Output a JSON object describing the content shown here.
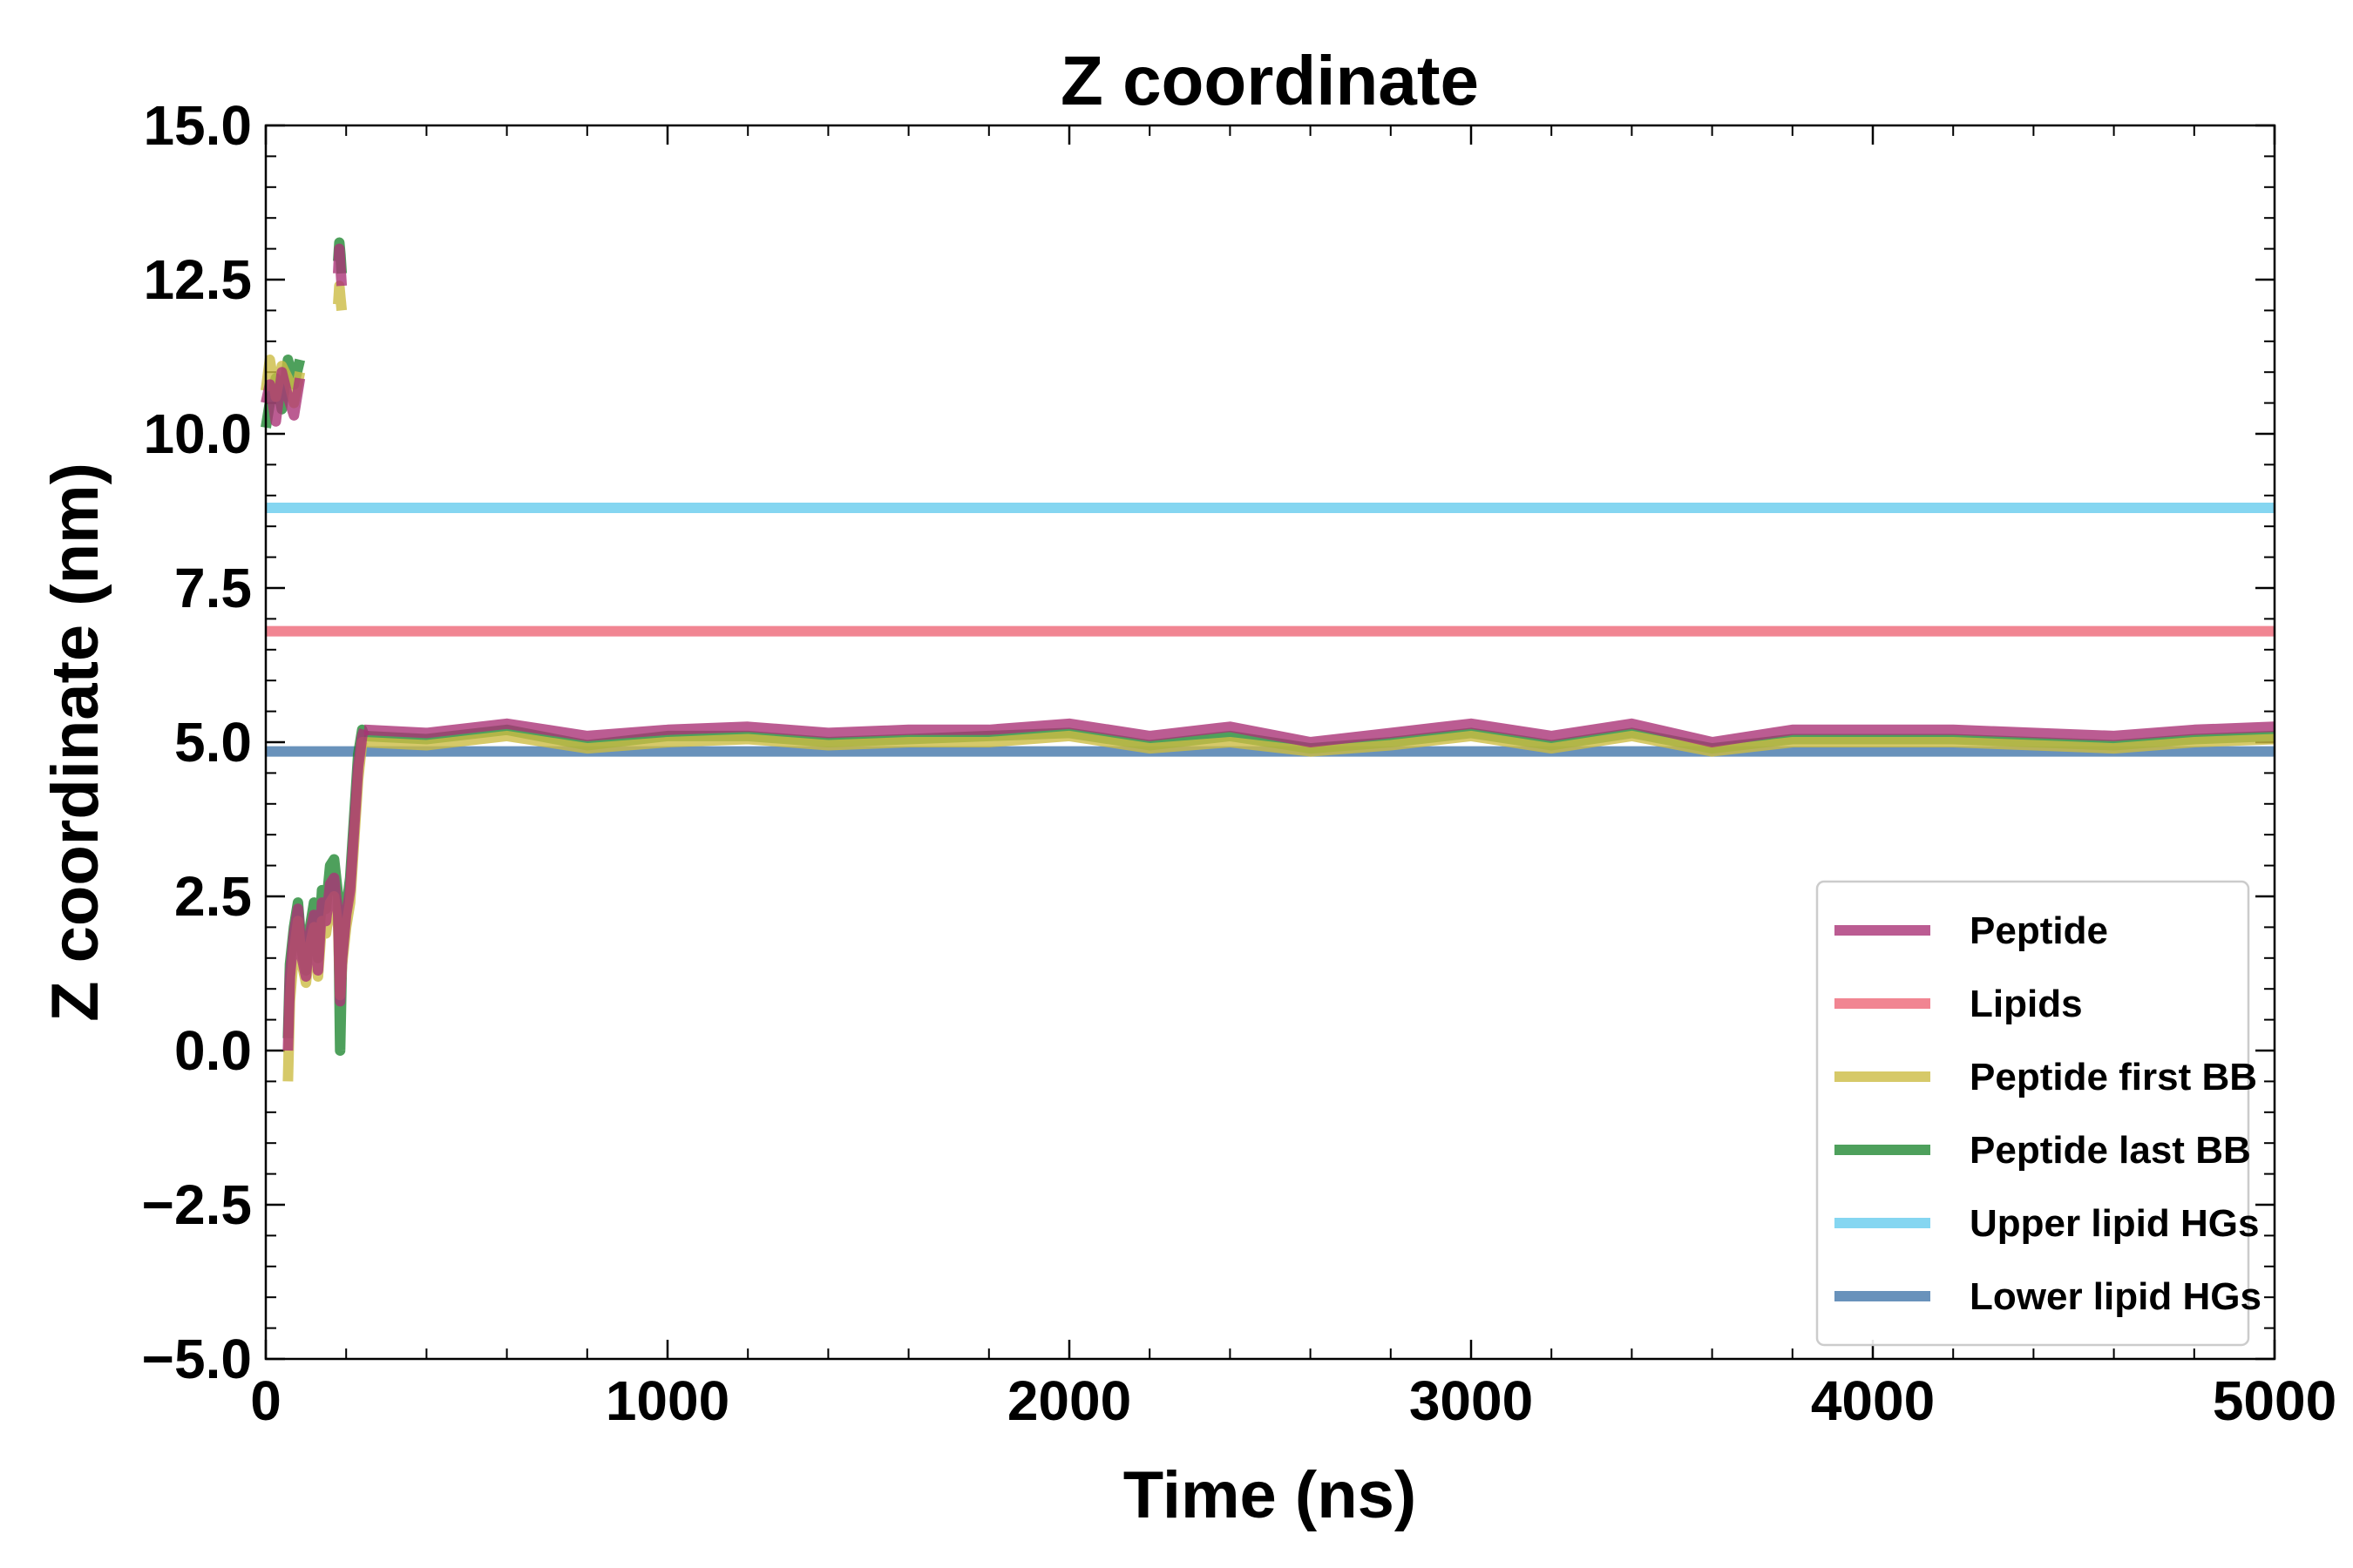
{
  "chart_data": {
    "type": "line",
    "title": "Z coordinate",
    "xlabel": "Time (ns)",
    "ylabel": "Z coordinate (nm)",
    "xlim": [
      0,
      5000
    ],
    "ylim": [
      -5.0,
      15.0
    ],
    "x_ticks": [
      0,
      1000,
      2000,
      3000,
      4000,
      5000
    ],
    "x_tick_labels": [
      "0",
      "1000",
      "2000",
      "3000",
      "4000",
      "5000"
    ],
    "y_ticks": [
      -5.0,
      -2.5,
      0.0,
      2.5,
      5.0,
      7.5,
      10.0,
      12.5,
      15.0
    ],
    "y_tick_labels": [
      "−5.0",
      "−2.5",
      "0.0",
      "2.5",
      "5.0",
      "7.5",
      "10.0",
      "12.5",
      "15.0"
    ],
    "grid": false,
    "legend_position": "lower-right",
    "series": [
      {
        "name": "Peptide",
        "color": "#aa3377",
        "segments": [
          {
            "x": [
              0,
              10,
              25,
              40,
              55,
              70,
              85
            ],
            "y": [
              10.5,
              10.8,
              10.2,
              11.0,
              10.6,
              10.3,
              10.9
            ]
          },
          {
            "x": [
              180,
              183,
              186,
              189
            ],
            "y": [
              12.6,
              13.0,
              12.7,
              12.4
            ]
          },
          {
            "x": [
              55,
              60,
              70,
              80,
              90,
              100,
              110,
              120,
              130,
              140,
              150,
              160,
              170,
              180,
              185,
              190,
              200,
              210,
              220,
              230,
              240,
              245
            ],
            "y": [
              0.0,
              1.2,
              1.9,
              2.3,
              1.5,
              1.2,
              1.9,
              2.2,
              1.3,
              2.4,
              2.1,
              2.7,
              2.8,
              2.2,
              0.8,
              1.5,
              2.2,
              2.6,
              3.6,
              4.6,
              5.1,
              5.2
            ]
          },
          {
            "x": [
              245,
              400,
              600,
              800,
              1000,
              1200,
              1400,
              1600,
              1800,
              2000,
              2200,
              2400,
              2600,
              2800,
              3000,
              3200,
              3400,
              3600,
              3800,
              4000,
              4200,
              4400,
              4600,
              4800,
              5000
            ],
            "y": [
              5.2,
              5.15,
              5.3,
              5.1,
              5.2,
              5.25,
              5.15,
              5.2,
              5.2,
              5.3,
              5.1,
              5.25,
              5.0,
              5.15,
              5.3,
              5.1,
              5.3,
              5.0,
              5.2,
              5.2,
              5.2,
              5.15,
              5.1,
              5.2,
              5.25
            ]
          }
        ]
      },
      {
        "name": "Lipids",
        "color": "#ee6677",
        "segments": [
          {
            "x": [
              0,
              500,
              1000,
              1500,
              2000,
              2500,
              3000,
              3500,
              4000,
              4500,
              5000
            ],
            "y": [
              6.8,
              6.8,
              6.8,
              6.8,
              6.8,
              6.8,
              6.8,
              6.8,
              6.8,
              6.8,
              6.8
            ]
          }
        ]
      },
      {
        "name": "Peptide first BB",
        "color": "#ccbb44",
        "segments": [
          {
            "x": [
              0,
              10,
              25,
              40,
              55,
              70,
              85
            ],
            "y": [
              10.7,
              11.2,
              10.6,
              11.1,
              10.9,
              10.5,
              11.0
            ]
          },
          {
            "x": [
              180,
              183,
              186,
              189
            ],
            "y": [
              12.1,
              12.4,
              12.2,
              12.0
            ]
          },
          {
            "x": [
              55,
              60,
              70,
              80,
              90,
              100,
              110,
              120,
              130,
              140,
              150,
              160,
              170,
              180,
              185,
              190,
              200,
              210,
              220,
              230,
              240,
              245
            ],
            "y": [
              -0.5,
              0.8,
              1.6,
              2.1,
              1.4,
              1.1,
              1.7,
              2.0,
              1.2,
              2.1,
              1.9,
              2.4,
              2.5,
              2.0,
              0.9,
              1.4,
              2.0,
              2.4,
              3.4,
              4.4,
              5.0,
              5.0
            ]
          },
          {
            "x": [
              245,
              400,
              600,
              800,
              1000,
              1200,
              1400,
              1600,
              1800,
              2000,
              2200,
              2400,
              2600,
              2800,
              3000,
              3200,
              3400,
              3600,
              3800,
              4000,
              4200,
              4400,
              4600,
              4800,
              5000
            ],
            "y": [
              5.0,
              4.95,
              5.1,
              4.9,
              5.0,
              5.05,
              4.95,
              5.0,
              5.0,
              5.1,
              4.9,
              5.0,
              4.85,
              4.95,
              5.1,
              4.9,
              5.1,
              4.85,
              5.0,
              5.0,
              5.0,
              4.95,
              4.9,
              5.0,
              5.05
            ]
          }
        ]
      },
      {
        "name": "Peptide last BB",
        "color": "#228833",
        "segments": [
          {
            "x": [
              0,
              10,
              25,
              40,
              55,
              70,
              85
            ],
            "y": [
              10.1,
              10.5,
              10.9,
              10.4,
              11.2,
              10.8,
              11.2
            ]
          },
          {
            "x": [
              180,
              183,
              186,
              189
            ],
            "y": [
              12.8,
              13.1,
              12.9,
              12.6
            ]
          },
          {
            "x": [
              55,
              60,
              70,
              80,
              90,
              100,
              110,
              120,
              130,
              140,
              150,
              160,
              170,
              180,
              185,
              190,
              200,
              210,
              220,
              230,
              240,
              245
            ],
            "y": [
              0.2,
              1.4,
              2.0,
              2.4,
              1.6,
              1.3,
              2.0,
              2.4,
              1.5,
              2.6,
              2.3,
              3.0,
              3.1,
              2.5,
              0.0,
              1.6,
              2.3,
              2.8,
              3.8,
              4.8,
              5.2,
              5.1
            ]
          },
          {
            "x": [
              245,
              400,
              600,
              800,
              1000,
              1200,
              1400,
              1600,
              1800,
              2000,
              2200,
              2400,
              2600,
              2800,
              3000,
              3200,
              3400,
              3600,
              3800,
              4000,
              4200,
              4400,
              4600,
              4800,
              5000
            ],
            "y": [
              5.1,
              5.05,
              5.2,
              4.95,
              5.1,
              5.1,
              5.0,
              5.05,
              5.1,
              5.15,
              4.95,
              5.1,
              4.9,
              5.0,
              5.15,
              4.95,
              5.15,
              4.9,
              5.05,
              5.05,
              5.05,
              5.0,
              4.95,
              5.05,
              5.1
            ]
          }
        ]
      },
      {
        "name": "Upper lipid HGs",
        "color": "#66ccee",
        "segments": [
          {
            "x": [
              0,
              500,
              1000,
              1500,
              2000,
              2500,
              3000,
              3500,
              4000,
              4500,
              5000
            ],
            "y": [
              8.8,
              8.8,
              8.8,
              8.8,
              8.8,
              8.8,
              8.8,
              8.8,
              8.8,
              8.8,
              8.8
            ]
          }
        ]
      },
      {
        "name": "Lower lipid HGs",
        "color": "#4477aa",
        "segments": [
          {
            "x": [
              0,
              500,
              1000,
              1500,
              2000,
              2500,
              3000,
              3500,
              4000,
              4500,
              5000
            ],
            "y": [
              4.85,
              4.85,
              4.85,
              4.85,
              4.85,
              4.85,
              4.85,
              4.85,
              4.85,
              4.85,
              4.85
            ]
          }
        ]
      }
    ]
  }
}
